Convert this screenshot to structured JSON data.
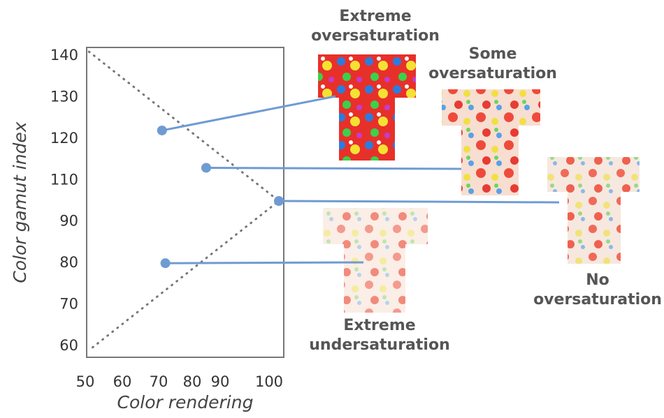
{
  "chart_data": {
    "type": "scatter",
    "x_label": "Color rendering",
    "y_label": "Color gamut index",
    "xlim": [
      50,
      103
    ],
    "ylim": [
      58,
      142
    ],
    "xticks": [
      50,
      60,
      70,
      80,
      90,
      100
    ],
    "yticks": [
      60,
      70,
      80,
      90,
      110,
      120,
      130,
      140
    ],
    "series": [
      {
        "color": "#6f9bd3",
        "x": [
          71,
          85,
          102,
          72
        ],
        "values": [
          122,
          113,
          100,
          80
        ]
      }
    ],
    "boundary": {
      "color": "#777777",
      "x": [
        51,
        102,
        51
      ],
      "y": [
        141,
        100,
        59
      ]
    },
    "annotations": [
      "Extreme oversaturation",
      "Some oversaturation",
      "No oversaturation",
      "Extreme undersaturation"
    ]
  }
}
